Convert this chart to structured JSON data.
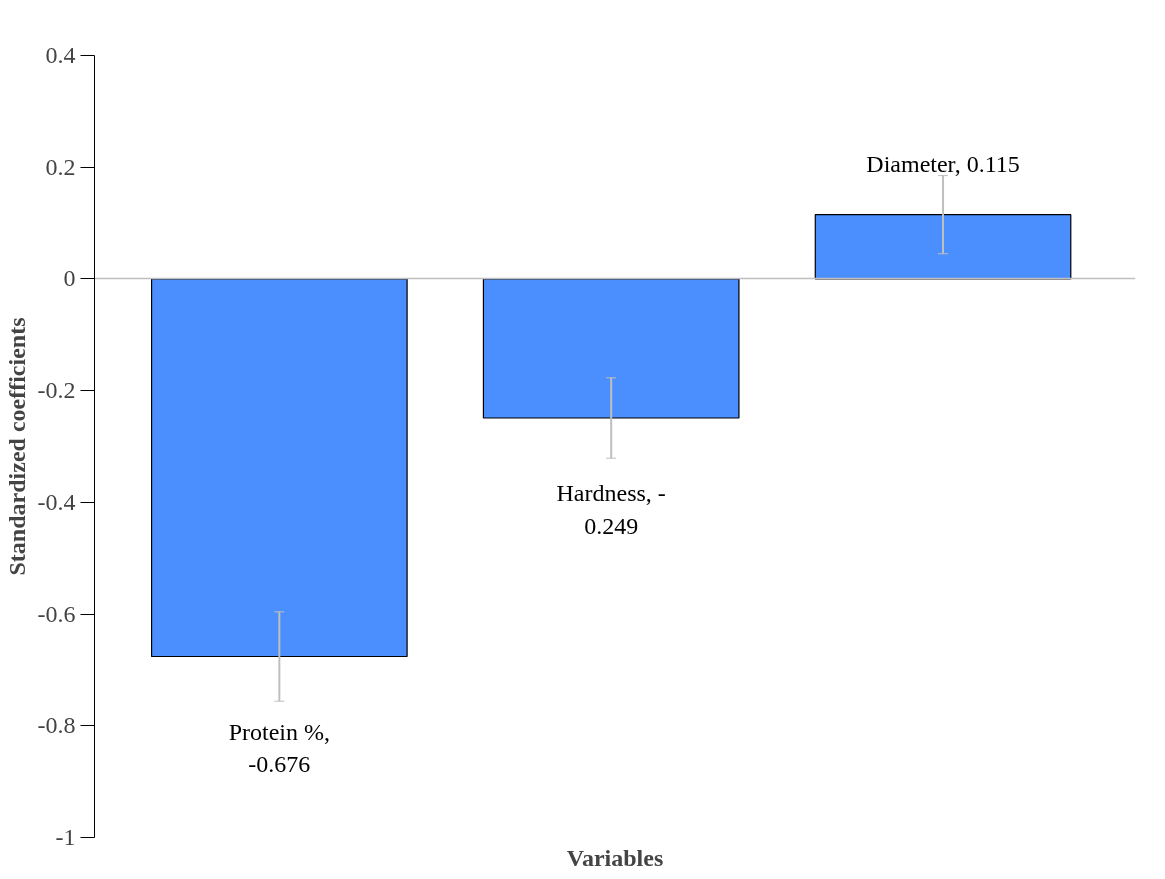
{
  "chart_data": {
    "type": "bar",
    "xlabel": "Variables",
    "ylabel": "Standardized coefficients",
    "categories": [
      null,
      null,
      null
    ],
    "values": [
      -0.676,
      -0.249,
      0.115
    ],
    "errors": [
      0.08,
      0.072,
      0.07
    ],
    "value_labels": [
      "Protein %,\n-0.676",
      "Hardness, -\n0.249",
      "Diameter, 0.115"
    ],
    "color": "#4a8ffd",
    "ylim": [
      -1,
      0.4
    ],
    "yticks": [
      -1,
      -0.8,
      -0.6,
      -0.4,
      -0.2,
      0,
      0.2,
      0.4
    ]
  }
}
